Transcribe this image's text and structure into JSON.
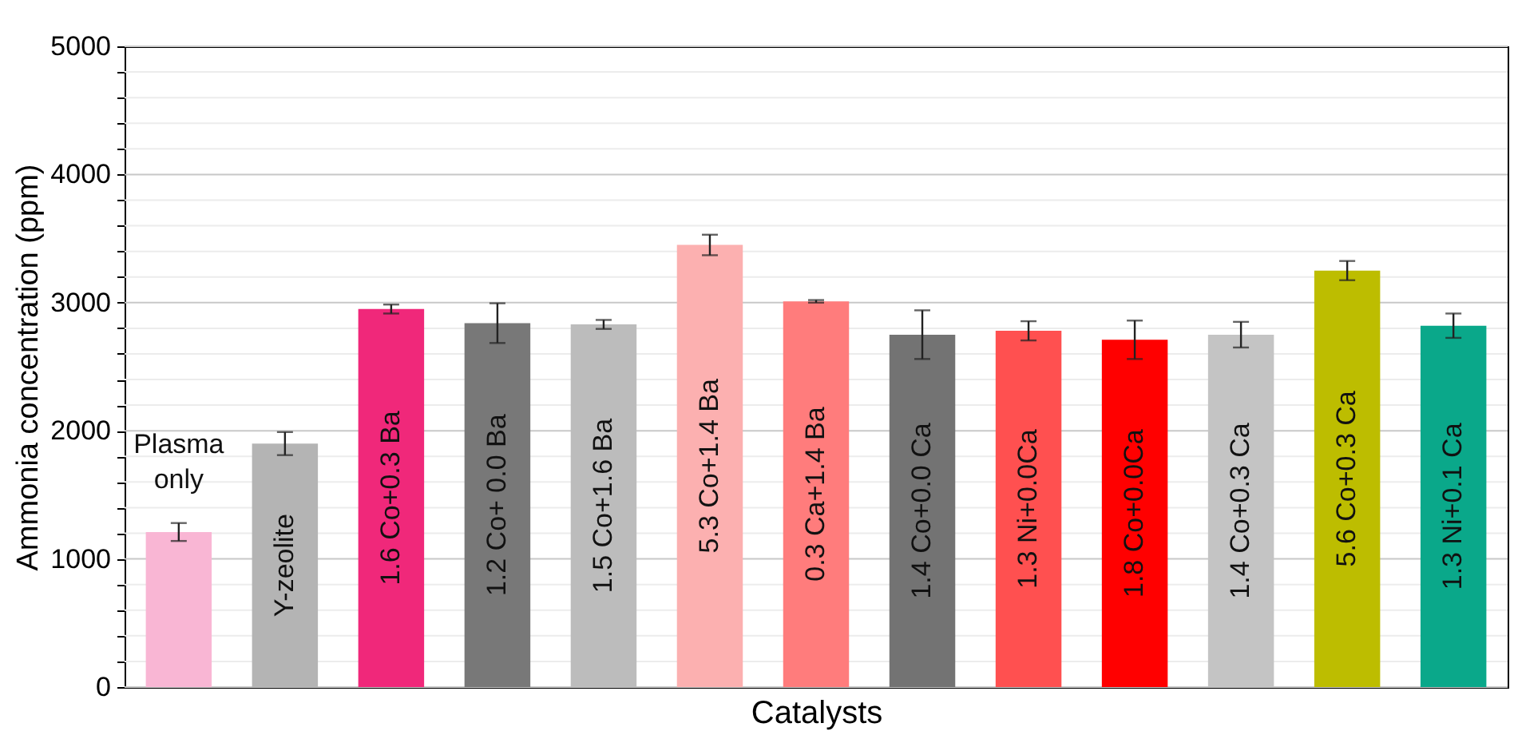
{
  "chart_data": {
    "type": "bar",
    "xlabel": "Catalysts",
    "ylabel": "Ammonia concentration (ppm)",
    "categories": [
      "Plasma only",
      "Y-zeolite",
      "1.6 Co+0.3 Ba",
      "1.2 Co+ 0.0 Ba",
      "1.5 Co+1.6 Ba",
      "5.3 Co+1.4 Ba",
      "0.3 Ca+1.4 Ba",
      "1.4 Co+0.0 Ca",
      "1.3 Ni+0.0Ca",
      "1.8 Co+0.0Ca",
      "1.4 Co+0.3 Ca",
      "5.6 Co+0.3 Ca",
      "1.3 Ni+0.1 Ca"
    ],
    "values": [
      1210,
      1900,
      2950,
      2840,
      2830,
      3450,
      3010,
      2750,
      2780,
      2710,
      2750,
      3250,
      2820
    ],
    "errors": [
      70,
      90,
      35,
      155,
      35,
      80,
      10,
      190,
      75,
      150,
      100,
      75,
      95
    ],
    "colors": [
      "#f9b6d4",
      "#b4b4b4",
      "#f0287a",
      "#787878",
      "#bcbcbc",
      "#fcb0b0",
      "#ff7c7c",
      "#737373",
      "#ff5050",
      "#ff0000",
      "#c4c4c4",
      "#bdbd00",
      "#0aa88a"
    ],
    "ylim": [
      0,
      5000
    ],
    "yticks": [
      0,
      {
        "value": 200,
        "label": null
      },
      {
        "value": 400,
        "label": null
      },
      {
        "value": 600,
        "label": null
      },
      {
        "value": 800,
        "label": null
      },
      1000,
      {
        "value": 1200,
        "label": null
      },
      {
        "value": 1400,
        "label": null
      },
      {
        "value": 1600,
        "label": null
      },
      {
        "value": 1800,
        "label": null
      },
      2000,
      {
        "value": 2200,
        "label": null
      },
      {
        "value": 2400,
        "label": null
      },
      {
        "value": 2600,
        "label": null
      },
      {
        "value": 2800,
        "label": null
      },
      3000,
      {
        "value": 3200,
        "label": null
      },
      {
        "value": 3400,
        "label": null
      },
      {
        "value": 3600,
        "label": null
      },
      {
        "value": 3800,
        "label": null
      },
      4000,
      {
        "value": 4200,
        "label": null
      },
      {
        "value": 4400,
        "label": null
      },
      {
        "value": 4600,
        "label": null
      },
      {
        "value": 4800,
        "label": null
      },
      5000
    ],
    "grid": "y",
    "tick_labels": "y"
  }
}
